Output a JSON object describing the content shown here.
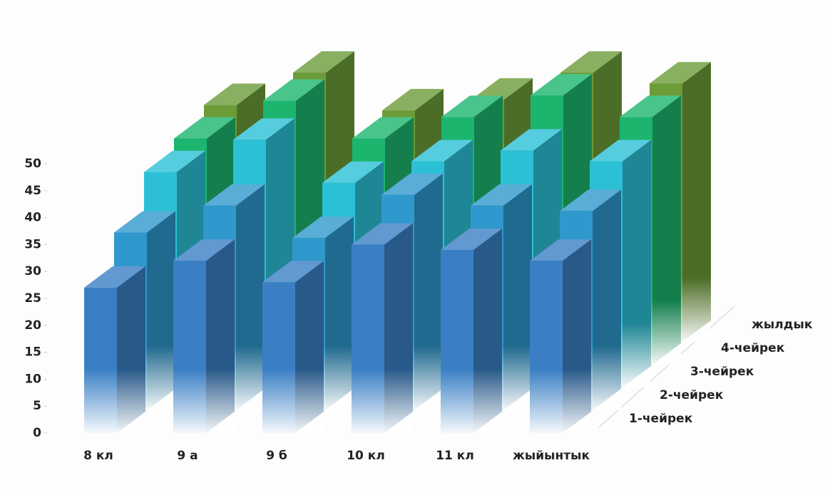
{
  "chart_data": {
    "type": "bar3d",
    "categories": [
      "8 кл",
      "9 а",
      "9 б",
      "10 кл",
      "11 кл",
      "жыйынтык"
    ],
    "series": [
      {
        "name": "1-чейрек",
        "color": "#3a7fc4",
        "values": [
          27,
          32,
          28,
          35,
          34,
          32
        ]
      },
      {
        "name": "2-чейрек",
        "color": "#2f98cc",
        "values": [
          33,
          38,
          32,
          40,
          38,
          37
        ]
      },
      {
        "name": "3-чейрек",
        "color": "#2cc0d6",
        "values": [
          40,
          46,
          38,
          42,
          44,
          42
        ]
      },
      {
        "name": "4-чейрек",
        "color": "#1cb56e",
        "values": [
          42,
          49,
          42,
          46,
          50,
          46
        ]
      },
      {
        "name": "жылдык",
        "color": "#6c9c38",
        "values": [
          44,
          50,
          43,
          45,
          50,
          48
        ]
      }
    ],
    "ylim": [
      0,
      50
    ],
    "yticks": [
      0,
      5,
      10,
      15,
      20,
      25,
      30,
      35,
      40,
      45,
      50
    ]
  }
}
